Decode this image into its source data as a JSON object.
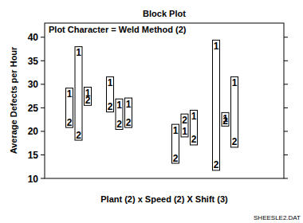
{
  "chart_data": {
    "type": "block",
    "title": "Block Plot",
    "y_label": "Average Defects per Hour",
    "x_label": "Plant (2) x Speed (2) X Shift (3)",
    "annotations": [
      "Plot Character = Weld Method (2)",
      "SHEESLE2.DAT"
    ],
    "categories": [
      null,
      null,
      null,
      null,
      null,
      null,
      null,
      null,
      null,
      null,
      null,
      null
    ],
    "series": [
      {
        "name": "1",
        "color": "#000000",
        "values": [
          28.0,
          36.8,
          28.2,
          30.4,
          25.7,
          25.9,
          20.3,
          20.0,
          23.3,
          38.2,
          22.8,
          30.4
        ]
      },
      {
        "name": "2",
        "color": "#000000",
        "values": [
          22.0,
          19.3,
          26.7,
          25.3,
          21.6,
          22.0,
          14.4,
          22.5,
          18.3,
          12.9,
          22.3,
          17.8
        ]
      }
    ],
    "ylim": [
      10,
      43
    ],
    "yticks": [
      10,
      15,
      20,
      25,
      30,
      35,
      40
    ],
    "tick_labels": "y",
    "grid": false
  }
}
